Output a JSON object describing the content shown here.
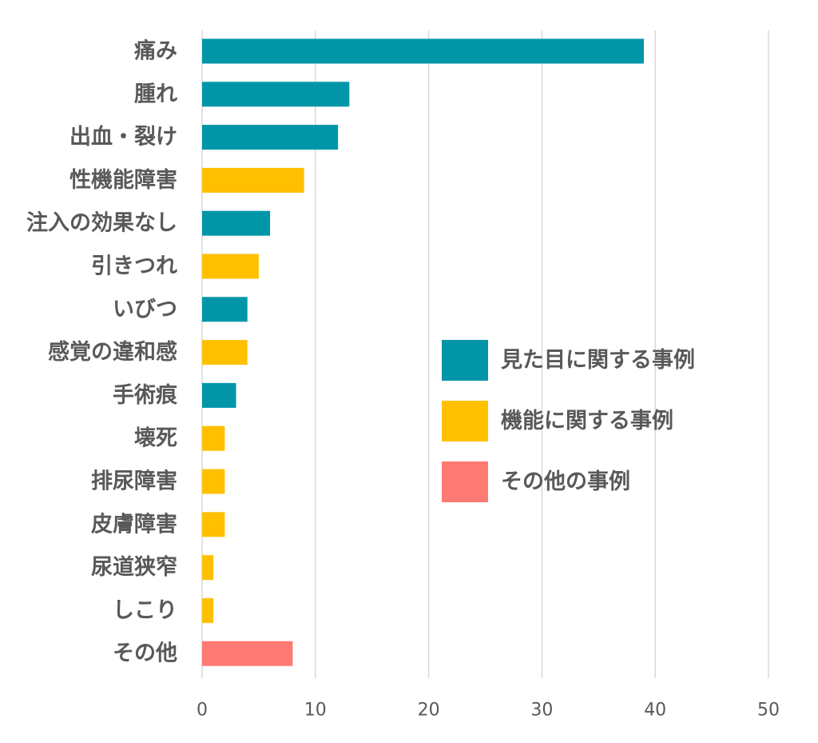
{
  "chart_data": {
    "type": "bar",
    "orientation": "horizontal",
    "categories": [
      "痛み",
      "腫れ",
      "出血・裂け",
      "性機能障害",
      "注入の効果なし",
      "引きつれ",
      "いびつ",
      "感覚の違和感",
      "手術痕",
      "壊死",
      "排尿障害",
      "皮膚障害",
      "尿道狭窄",
      "しこり",
      "その他"
    ],
    "values": [
      39,
      13,
      12,
      9,
      6,
      5,
      4,
      4,
      3,
      2,
      2,
      2,
      1,
      1,
      8
    ],
    "groups": [
      "appearance",
      "appearance",
      "appearance",
      "function",
      "appearance",
      "function",
      "appearance",
      "function",
      "appearance",
      "function",
      "function",
      "function",
      "function",
      "function",
      "other"
    ],
    "xlim": [
      0,
      50
    ],
    "xticks": [
      0,
      10,
      20,
      30,
      40,
      50
    ],
    "grid": true,
    "title": "",
    "xlabel": "",
    "ylabel": "",
    "legend_position": "middle-right",
    "legend": [
      {
        "key": "appearance",
        "label": "見た目に関する事例",
        "color": "#0096A8"
      },
      {
        "key": "function",
        "label": "機能に関する事例",
        "color": "#FFC000"
      },
      {
        "key": "other",
        "label": "その他の事例",
        "color": "#FF7A72"
      }
    ]
  }
}
